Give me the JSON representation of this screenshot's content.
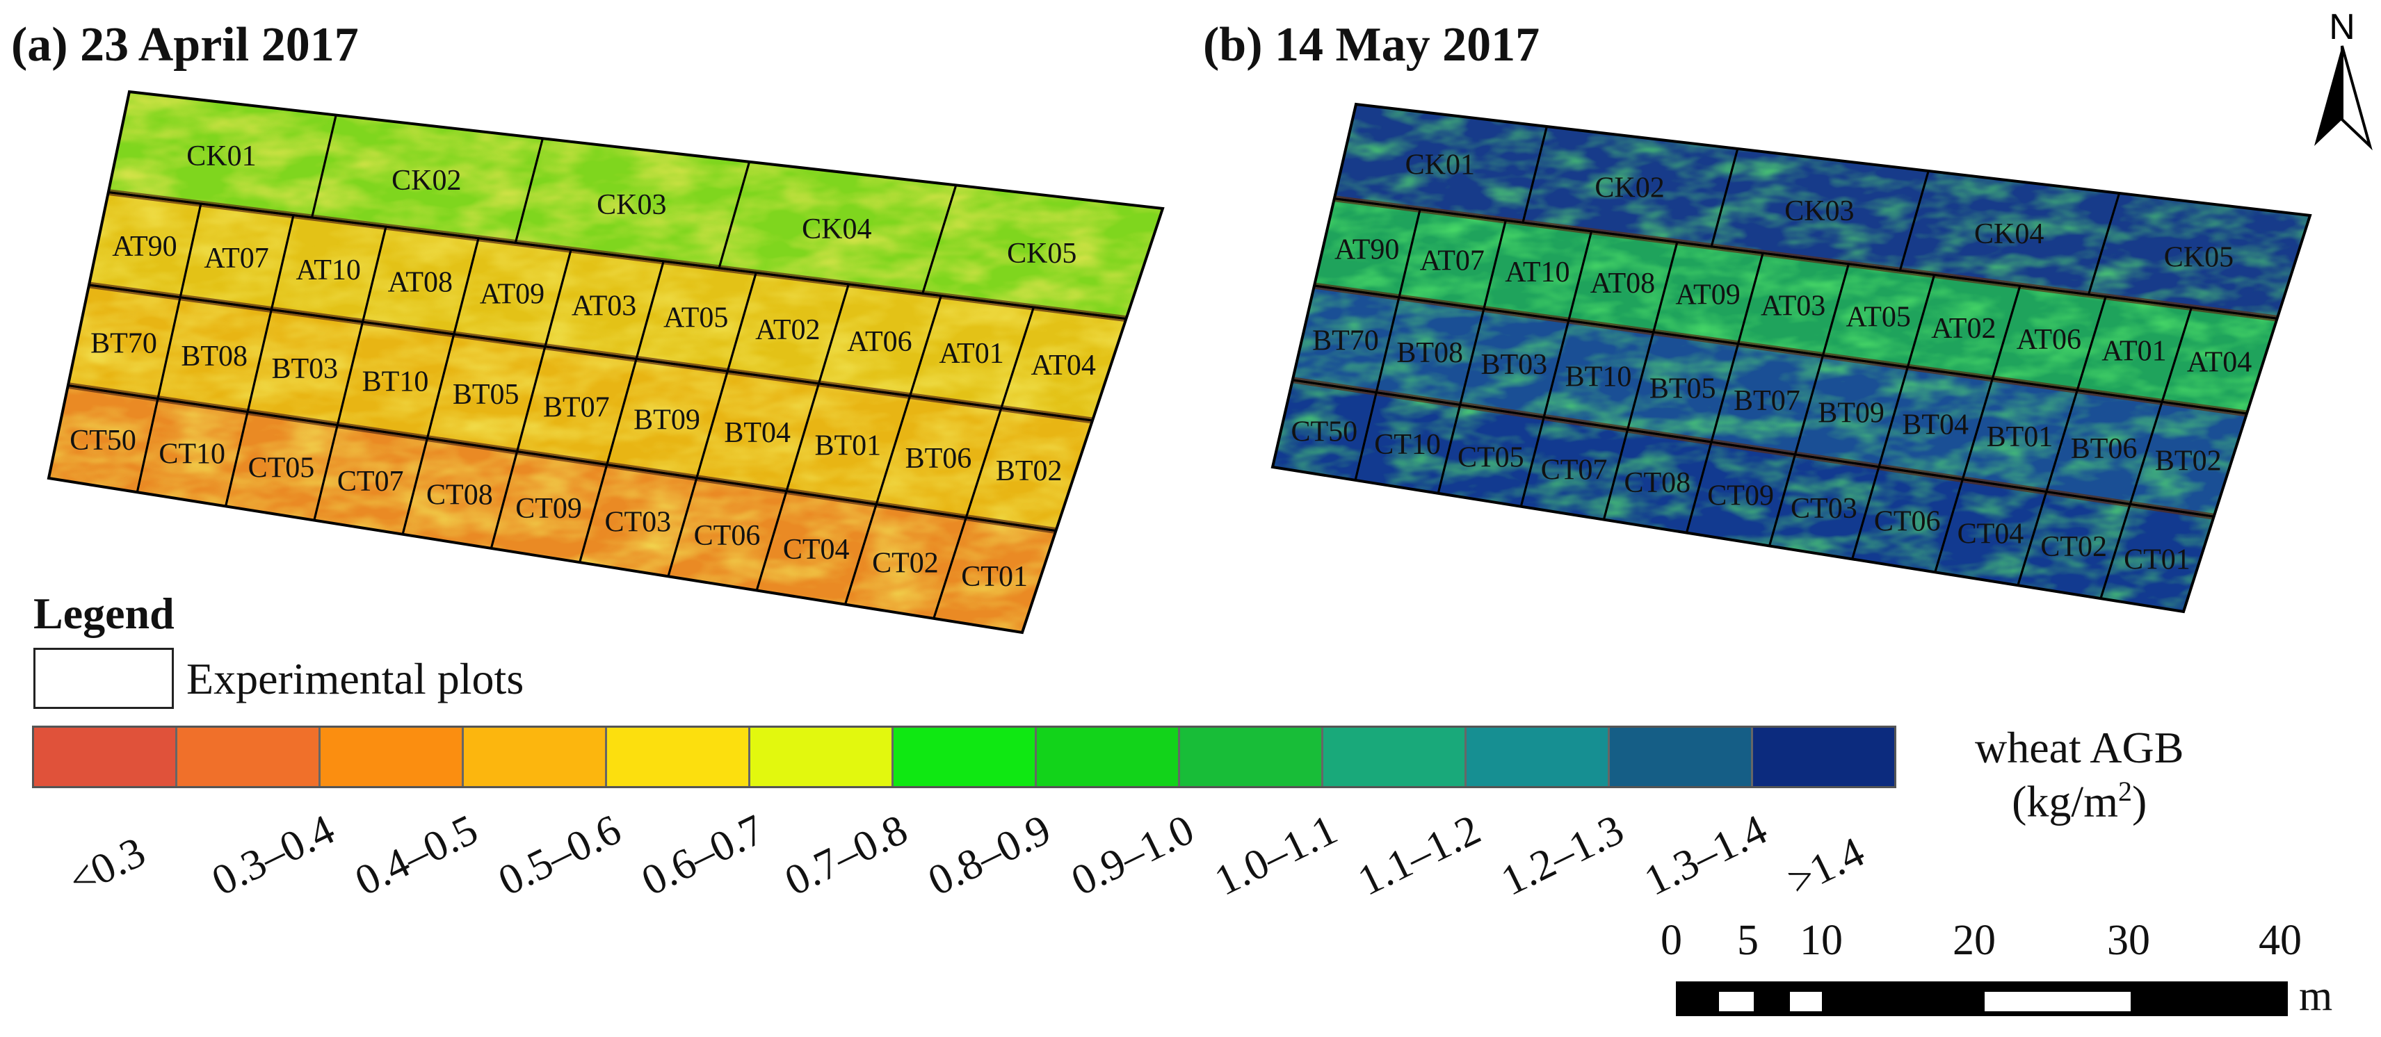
{
  "panels": [
    {
      "title": "(a)  23 April 2017",
      "rows": [
        [
          "CK01",
          "CK02",
          "CK03",
          "CK04",
          "CK05"
        ],
        [
          "AT90",
          "AT07",
          "AT10",
          "AT08",
          "AT09",
          "AT03",
          "AT05",
          "AT02",
          "AT06",
          "AT01",
          "AT04"
        ],
        [
          "BT70",
          "BT08",
          "BT03",
          "BT10",
          "BT05",
          "BT07",
          "BT09",
          "BT04",
          "BT01",
          "BT06",
          "BT02"
        ],
        [
          "CT50",
          "CT10",
          "CT05",
          "CT07",
          "CT08",
          "CT09",
          "CT03",
          "CT06",
          "CT04",
          "CT02",
          "CT01"
        ]
      ]
    },
    {
      "title": "(b)  14 May 2017",
      "rows": [
        [
          "CK01",
          "CK02",
          "CK03",
          "CK04",
          "CK05"
        ],
        [
          "AT90",
          "AT07",
          "AT10",
          "AT08",
          "AT09",
          "AT03",
          "AT05",
          "AT02",
          "AT06",
          "AT01",
          "AT04"
        ],
        [
          "BT70",
          "BT08",
          "BT03",
          "BT10",
          "BT05",
          "BT07",
          "BT09",
          "BT04",
          "BT01",
          "BT06",
          "BT02"
        ],
        [
          "CT50",
          "CT10",
          "CT05",
          "CT07",
          "CT08",
          "CT09",
          "CT03",
          "CT06",
          "CT04",
          "CT02",
          "CT01"
        ]
      ]
    }
  ],
  "north_arrow": {
    "label": "N"
  },
  "legend": {
    "heading": "Legend",
    "plots_label": "Experimental plots",
    "classes": [
      {
        "label": "<0.3",
        "color": "#e0523a"
      },
      {
        "label": "0.3–0.4",
        "color": "#f0702a"
      },
      {
        "label": "0.4–0.5",
        "color": "#fb8e10"
      },
      {
        "label": "0.5–0.6",
        "color": "#fcb60e"
      },
      {
        "label": "0.6–0.7",
        "color": "#fcdf0e"
      },
      {
        "label": "0.7–0.8",
        "color": "#e2f80e"
      },
      {
        "label": "0.8–0.9",
        "color": "#0fe812"
      },
      {
        "label": "0.9–1.0",
        "color": "#12d31a"
      },
      {
        "label": "1.0–1.1",
        "color": "#18bd38"
      },
      {
        "label": "1.1–1.2",
        "color": "#19a97a"
      },
      {
        "label": "1.2–1.3",
        "color": "#168f92"
      },
      {
        "label": "1.3–1.4",
        "color": "#155e86"
      },
      {
        "label": ">1.4",
        "color": "#0c2b7e"
      }
    ],
    "unit_line1": "wheat AGB",
    "unit_line2": "(kg/m",
    "unit_sup": "2",
    "unit_close": ")"
  },
  "scale_bar": {
    "ticks": [
      "0",
      "5",
      "10",
      "20",
      "30",
      "40"
    ],
    "unit": "m"
  }
}
